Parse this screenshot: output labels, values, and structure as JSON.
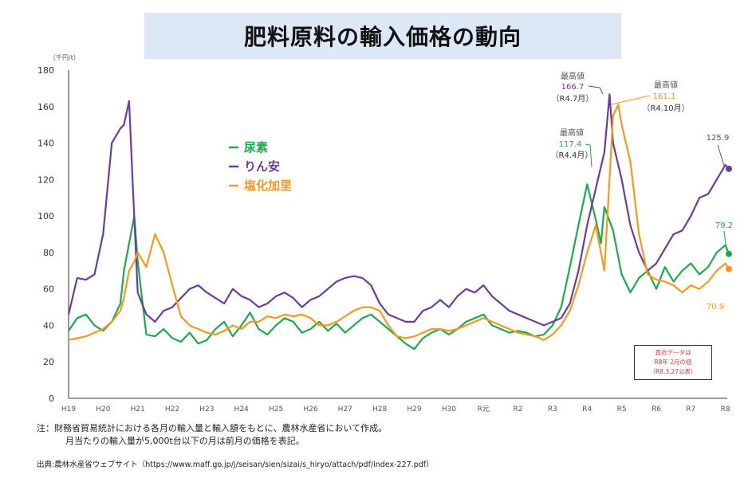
{
  "title": "肥料原料の輸入価格の動向",
  "chart_data": {
    "type": "line",
    "title": "肥料原料の輸入価格の動向",
    "ylabel": "（千円/t）",
    "xlabel": "",
    "ylim": [
      0,
      180
    ],
    "yticks": [
      0,
      20,
      40,
      60,
      80,
      100,
      120,
      140,
      160,
      180
    ],
    "xticks": [
      "H19",
      "H20",
      "H21",
      "H22",
      "H23",
      "H24",
      "H25",
      "H26",
      "H27",
      "H28",
      "H29",
      "H30",
      "R元",
      "R2",
      "R3",
      "R4",
      "R5",
      "R6",
      "R7",
      "R8"
    ],
    "x_range_years": [
      0,
      19.1
    ],
    "grid": false,
    "legend": {
      "placement": "center-left",
      "entries": [
        "尿素",
        "りん安",
        "塩化加里"
      ]
    },
    "series": [
      {
        "name": "尿素",
        "color": "#1aab4b",
        "x": [
          0,
          0.25,
          0.5,
          0.75,
          1,
          1.25,
          1.5,
          1.6,
          1.75,
          1.9,
          2,
          2.25,
          2.5,
          2.75,
          3,
          3.25,
          3.5,
          3.75,
          4,
          4.25,
          4.5,
          4.75,
          5,
          5.25,
          5.5,
          5.75,
          6,
          6.25,
          6.5,
          6.75,
          7,
          7.25,
          7.5,
          7.75,
          8,
          8.25,
          8.5,
          8.75,
          9,
          9.25,
          9.5,
          9.75,
          10,
          10.25,
          10.5,
          10.75,
          11,
          11.25,
          11.5,
          11.75,
          12,
          12.25,
          12.5,
          12.75,
          13,
          13.25,
          13.5,
          13.75,
          14,
          14.25,
          14.5,
          14.75,
          15,
          15.25,
          15.4,
          15.5,
          15.75,
          16,
          16.25,
          16.5,
          16.75,
          17,
          17.25,
          17.5,
          17.75,
          18,
          18.25,
          18.5,
          18.75,
          19,
          19.1
        ],
        "values": [
          37,
          44,
          46,
          40,
          37,
          42,
          52,
          70,
          85,
          100,
          75,
          35,
          34,
          38,
          33,
          31,
          36,
          30,
          32,
          38,
          42,
          34,
          40,
          47,
          38,
          35,
          40,
          44,
          42,
          36,
          38,
          42,
          37,
          41,
          36,
          40,
          44,
          46,
          42,
          38,
          34,
          30,
          27,
          33,
          36,
          38,
          35,
          38,
          42,
          44,
          46,
          40,
          38,
          36,
          37,
          36,
          34,
          35,
          40,
          50,
          72,
          95,
          117.4,
          98,
          85,
          105,
          92,
          68,
          58,
          66,
          70,
          60,
          72,
          64,
          70,
          74,
          68,
          72,
          80,
          84,
          79.2
        ]
      },
      {
        "name": "りん安",
        "color": "#6a3d9a",
        "x": [
          0,
          0.25,
          0.5,
          0.75,
          1,
          1.25,
          1.5,
          1.6,
          1.75,
          1.85,
          2,
          2.25,
          2.5,
          2.75,
          3,
          3.25,
          3.5,
          3.75,
          4,
          4.25,
          4.5,
          4.75,
          5,
          5.25,
          5.5,
          5.75,
          6,
          6.25,
          6.5,
          6.75,
          7,
          7.25,
          7.5,
          7.75,
          8,
          8.25,
          8.5,
          8.75,
          9,
          9.25,
          9.5,
          9.75,
          10,
          10.25,
          10.5,
          10.75,
          11,
          11.25,
          11.5,
          11.75,
          12,
          12.25,
          12.5,
          12.75,
          13,
          13.25,
          13.5,
          13.75,
          14,
          14.25,
          14.5,
          14.75,
          15,
          15.25,
          15.5,
          15.65,
          15.75,
          16,
          16.25,
          16.5,
          16.75,
          17,
          17.25,
          17.5,
          17.75,
          18,
          18.25,
          18.5,
          18.75,
          19,
          19.1
        ],
        "values": [
          46,
          66,
          65,
          68,
          90,
          140,
          148,
          150,
          163,
          120,
          58,
          46,
          42,
          48,
          50,
          55,
          60,
          62,
          58,
          55,
          52,
          60,
          56,
          54,
          50,
          52,
          56,
          58,
          55,
          50,
          54,
          56,
          60,
          64,
          66,
          67,
          66,
          62,
          52,
          46,
          44,
          42,
          42,
          48,
          50,
          54,
          50,
          56,
          60,
          58,
          62,
          56,
          52,
          48,
          46,
          44,
          42,
          40,
          42,
          44,
          52,
          70,
          95,
          115,
          135,
          166.7,
          140,
          120,
          95,
          80,
          70,
          74,
          82,
          90,
          92,
          100,
          110,
          112,
          120,
          128,
          125.9
        ]
      },
      {
        "name": "塩化加里",
        "color": "#f7981d",
        "x": [
          0,
          0.25,
          0.5,
          0.75,
          1,
          1.25,
          1.5,
          1.6,
          1.75,
          1.9,
          2,
          2.25,
          2.5,
          2.75,
          3,
          3.25,
          3.5,
          3.75,
          4,
          4.25,
          4.5,
          4.75,
          5,
          5.25,
          5.5,
          5.75,
          6,
          6.25,
          6.5,
          6.75,
          7,
          7.25,
          7.5,
          7.75,
          8,
          8.25,
          8.5,
          8.75,
          9,
          9.25,
          9.5,
          9.75,
          10,
          10.25,
          10.5,
          10.75,
          11,
          11.25,
          11.5,
          11.75,
          12,
          12.25,
          12.5,
          12.75,
          13,
          13.25,
          13.5,
          13.75,
          14,
          14.25,
          14.5,
          14.75,
          15,
          15.25,
          15.5,
          15.75,
          15.9,
          16,
          16.25,
          16.5,
          16.75,
          17,
          17.25,
          17.5,
          17.75,
          18,
          18.25,
          18.5,
          18.75,
          19,
          19.1
        ],
        "values": [
          32,
          33,
          34,
          36,
          38,
          42,
          48,
          55,
          70,
          75,
          80,
          72,
          90,
          80,
          62,
          45,
          40,
          38,
          36,
          35,
          37,
          40,
          38,
          42,
          42,
          45,
          44,
          46,
          45,
          46,
          44,
          40,
          40,
          42,
          45,
          48,
          50,
          50,
          48,
          40,
          34,
          33,
          34,
          36,
          38,
          38,
          37,
          38,
          40,
          42,
          44,
          42,
          40,
          38,
          36,
          35,
          34,
          32,
          35,
          40,
          48,
          62,
          80,
          95,
          70,
          155,
          161.1,
          150,
          130,
          90,
          68,
          65,
          64,
          62,
          58,
          62,
          60,
          64,
          70,
          74,
          70.9
        ]
      }
    ],
    "annotations": [
      {
        "label": "最高値",
        "value": "166.7",
        "date": "（R4.7月）",
        "series": "りん安"
      },
      {
        "label": "最高値",
        "value": "161.1",
        "date": "（R4.10月）",
        "series": "塩化加里"
      },
      {
        "label": "最高値",
        "value": "117.4",
        "date": "（R4.4月）",
        "series": "尿素"
      },
      {
        "label": "",
        "value": "125.9",
        "date": "",
        "series": "りん安"
      },
      {
        "label": "",
        "value": "79.2",
        "date": "",
        "series": "尿素"
      },
      {
        "label": "",
        "value": "70.9",
        "date": "",
        "series": "塩化加里"
      }
    ]
  },
  "note_box": {
    "line1": "直近データは",
    "line2": "R8年 2月の値",
    "line3": "（R8.3.27公表）"
  },
  "notes": {
    "line1": "注：財務省貿易統計における各月の輸入量と輸入額をもとに、農林水産省において作成。",
    "line2": "月当たりの輸入量が5,000t台以下の月は前月の価格を表記。"
  },
  "source": "出典:農林水産省ウェブサイト（https://www.maff.go.jp/j/seisan/sien/sizai/s_hiryo/attach/pdf/index-227.pdf）"
}
